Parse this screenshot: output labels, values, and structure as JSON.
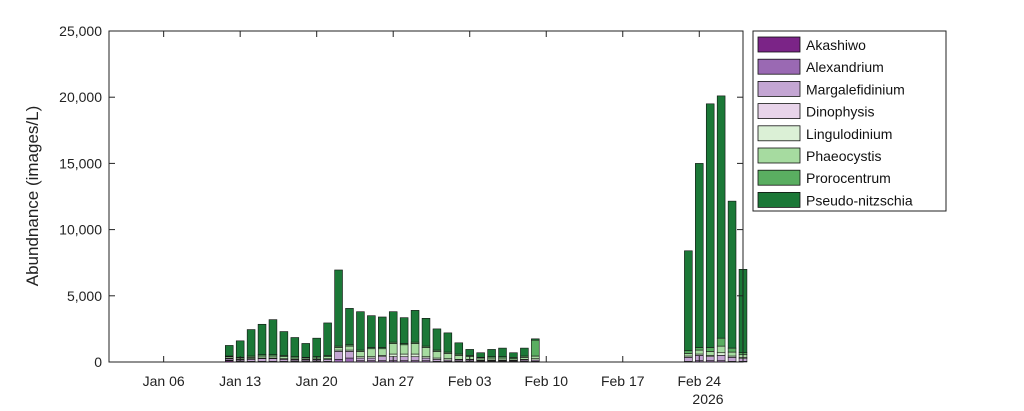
{
  "chart_data": {
    "type": "bar",
    "stacked": true,
    "ylabel": "Abundnance (images/L)",
    "xlabel": "",
    "ylim": [
      0,
      25000
    ],
    "yticks": [
      0,
      5000,
      10000,
      15000,
      20000,
      25000
    ],
    "ytick_labels": [
      "0",
      "5,000",
      "10,000",
      "15,000",
      "20,000",
      "25,000"
    ],
    "xlim": [
      "2026-01-01",
      "2026-02-28"
    ],
    "xticks": [
      "2026-01-06",
      "2026-01-13",
      "2026-01-20",
      "2026-01-27",
      "2026-02-03",
      "2026-02-10",
      "2026-02-17",
      "2026-02-24"
    ],
    "xtick_labels": [
      "Jan 06",
      "Jan 13",
      "Jan 20",
      "Jan 27",
      "Feb 03",
      "Feb 10",
      "Feb 17",
      "Feb 24"
    ],
    "year_label": "2026",
    "legend_position": "outside-right-top",
    "grid": false,
    "series": [
      {
        "name": "Akashiwo",
        "color": "#7b2487"
      },
      {
        "name": "Alexandrium",
        "color": "#9a69b3"
      },
      {
        "name": "Margalefidinium",
        "color": "#c4a6d3"
      },
      {
        "name": "Dinophysis",
        "color": "#e8d4ea"
      },
      {
        "name": "Lingulodinium",
        "color": "#dbf0d6"
      },
      {
        "name": "Phaeocystis",
        "color": "#a6dba0"
      },
      {
        "name": "Prorocentrum",
        "color": "#5aae61"
      },
      {
        "name": "Pseudo-nitzschia",
        "color": "#1b7837"
      }
    ],
    "x": [
      "2026-01-12",
      "2026-01-13",
      "2026-01-14",
      "2026-01-15",
      "2026-01-16",
      "2026-01-17",
      "2026-01-18",
      "2026-01-19",
      "2026-01-20",
      "2026-01-21",
      "2026-01-22",
      "2026-01-23",
      "2026-01-24",
      "2026-01-25",
      "2026-01-26",
      "2026-01-27",
      "2026-01-28",
      "2026-01-29",
      "2026-01-30",
      "2026-01-31",
      "2026-02-01",
      "2026-02-02",
      "2026-02-03",
      "2026-02-04",
      "2026-02-05",
      "2026-02-06",
      "2026-02-07",
      "2026-02-08",
      "2026-02-09",
      "2026-02-10",
      "2026-02-23",
      "2026-02-24",
      "2026-02-25",
      "2026-02-26",
      "2026-02-27",
      "2026-02-28"
    ],
    "stacks": [
      [
        100,
        50,
        100,
        0,
        50,
        100,
        50,
        800
      ],
      [
        0,
        50,
        100,
        0,
        50,
        100,
        50,
        1250
      ],
      [
        0,
        50,
        150,
        0,
        50,
        100,
        100,
        2000
      ],
      [
        0,
        50,
        200,
        0,
        50,
        150,
        100,
        2300
      ],
      [
        0,
        50,
        200,
        0,
        50,
        150,
        100,
        2650
      ],
      [
        0,
        50,
        150,
        0,
        50,
        150,
        100,
        1800
      ],
      [
        0,
        50,
        100,
        0,
        50,
        100,
        100,
        1450
      ],
      [
        0,
        50,
        100,
        0,
        50,
        100,
        50,
        1050
      ],
      [
        0,
        50,
        100,
        0,
        50,
        100,
        100,
        1400
      ],
      [
        0,
        50,
        150,
        0,
        50,
        150,
        100,
        2450
      ],
      [
        0,
        200,
        600,
        0,
        100,
        200,
        100,
        5750
      ],
      [
        0,
        300,
        500,
        0,
        100,
        300,
        100,
        2750
      ],
      [
        0,
        100,
        200,
        0,
        100,
        400,
        100,
        2900
      ],
      [
        0,
        100,
        200,
        0,
        100,
        600,
        100,
        2400
      ],
      [
        0,
        100,
        300,
        0,
        100,
        500,
        100,
        2300
      ],
      [
        0,
        100,
        300,
        0,
        200,
        800,
        100,
        2300
      ],
      [
        0,
        100,
        300,
        0,
        200,
        700,
        100,
        1950
      ],
      [
        0,
        100,
        300,
        0,
        200,
        800,
        100,
        2400
      ],
      [
        0,
        100,
        200,
        0,
        100,
        700,
        100,
        2100
      ],
      [
        0,
        50,
        150,
        0,
        100,
        500,
        100,
        1600
      ],
      [
        0,
        50,
        100,
        0,
        100,
        400,
        100,
        1450
      ],
      [
        0,
        50,
        100,
        0,
        50,
        300,
        100,
        850
      ],
      [
        0,
        50,
        100,
        0,
        50,
        200,
        100,
        450
      ],
      [
        0,
        50,
        50,
        0,
        50,
        150,
        50,
        350
      ],
      [
        0,
        50,
        50,
        0,
        50,
        150,
        100,
        550
      ],
      [
        0,
        50,
        50,
        0,
        50,
        150,
        100,
        650
      ],
      [
        0,
        50,
        50,
        0,
        50,
        100,
        100,
        350
      ],
      [
        0,
        50,
        100,
        0,
        50,
        150,
        100,
        600
      ],
      [
        0,
        50,
        100,
        0,
        100,
        200,
        1200,
        100
      ],
      [
        0,
        0,
        0,
        0,
        0,
        0,
        0,
        0
      ],
      [
        0,
        50,
        300,
        0,
        100,
        200,
        200,
        7550
      ],
      [
        0,
        100,
        400,
        0,
        100,
        300,
        200,
        13900
      ],
      [
        0,
        100,
        300,
        0,
        100,
        300,
        300,
        18400
      ],
      [
        0,
        100,
        400,
        0,
        200,
        500,
        600,
        18300
      ],
      [
        0,
        50,
        300,
        0,
        100,
        300,
        300,
        11100
      ],
      [
        0,
        50,
        200,
        0,
        100,
        200,
        150,
        6300
      ]
    ]
  }
}
